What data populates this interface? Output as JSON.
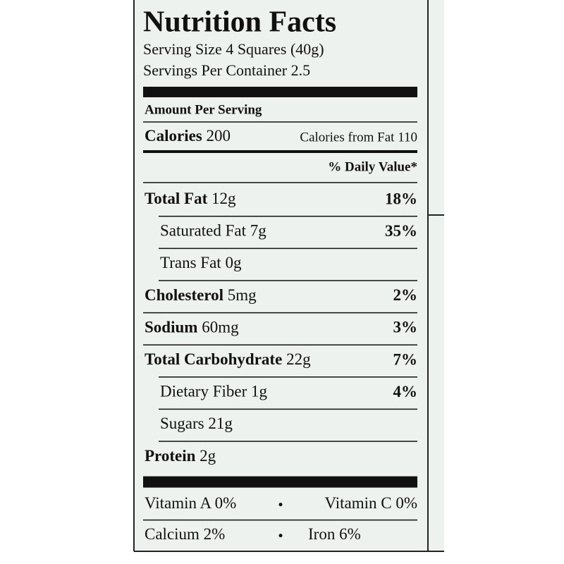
{
  "title": "Nutrition Facts",
  "serving_size": "Serving Size 4 Squares (40g)",
  "servings_per_container": "Servings Per Container 2.5",
  "amount_per_serving": "Amount Per Serving",
  "calories": {
    "label": "Calories",
    "amount": "200",
    "from_fat": "Calories from Fat 110"
  },
  "daily_value_header": "% Daily Value*",
  "nutrients": [
    {
      "name": "Total Fat",
      "amount": "12g",
      "dv": "18%",
      "sub": [
        {
          "name": "Saturated Fat",
          "amount": "7g",
          "dv": "35%"
        },
        {
          "name": "Trans Fat",
          "amount": "0g"
        }
      ]
    },
    {
      "name": "Cholesterol",
      "amount": "5mg",
      "dv": "2%"
    },
    {
      "name": "Sodium",
      "amount": "60mg",
      "dv": "3%"
    },
    {
      "name": "Total Carbohydrate",
      "amount": "22g",
      "dv": "7%",
      "sub": [
        {
          "name": "Dietary Fiber",
          "amount": "1g",
          "dv": "4%"
        },
        {
          "name": "Sugars",
          "amount": "21g"
        }
      ]
    },
    {
      "name": "Protein",
      "amount": "2g"
    }
  ],
  "vitamins": [
    [
      "Vitamin A 0%",
      "Vitamin C 0%"
    ],
    [
      "Calcium 2%",
      "Iron 6%"
    ]
  ]
}
